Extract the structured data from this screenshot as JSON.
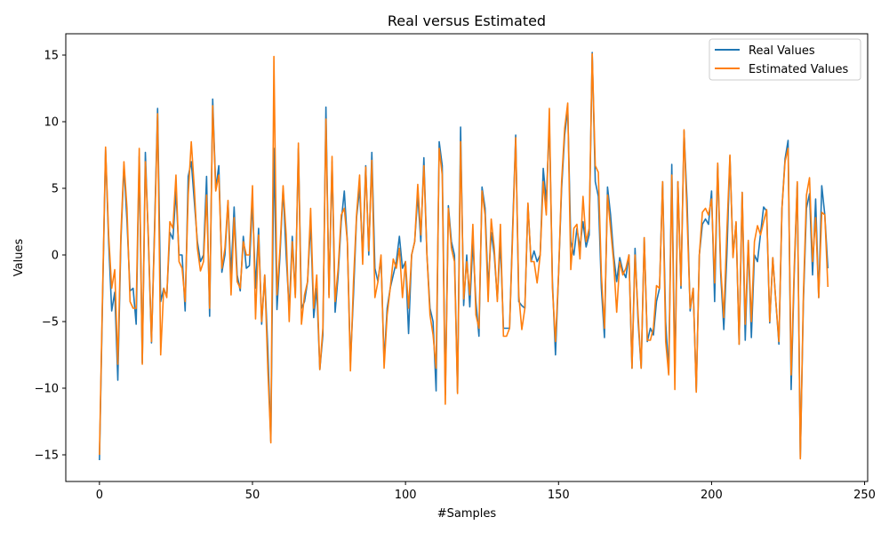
{
  "chart_data": {
    "type": "line",
    "title": "Real versus Estimated",
    "xlabel": "#Samples",
    "ylabel": "Values",
    "xlim": [
      -11,
      251
    ],
    "ylim": [
      -17,
      16.6
    ],
    "xticks": [
      0,
      50,
      100,
      150,
      200,
      250
    ],
    "yticks": [
      -15,
      -10,
      -5,
      0,
      5,
      10,
      15
    ],
    "grid": false,
    "legend_position": "top-right",
    "colors": {
      "real": "#1f77b4",
      "estimated": "#ff7f0e"
    },
    "series": [
      {
        "name": "Real Values",
        "values": [
          -15.4,
          -3.5,
          7.9,
          1.0,
          -4.2,
          -2.8,
          -9.4,
          1.0,
          6.7,
          2.5,
          -2.7,
          -2.5,
          -5.2,
          7.4,
          -8.1,
          7.7,
          1.0,
          -6.6,
          2.0,
          11.0,
          -3.5,
          -2.5,
          -3.1,
          1.7,
          1.2,
          4.8,
          0.0,
          0.0,
          -4.2,
          5.9,
          7.0,
          4.0,
          1.0,
          -0.5,
          0.0,
          5.9,
          -4.6,
          11.7,
          5.0,
          6.7,
          -1.3,
          0.0,
          4.0,
          -1.5,
          3.6,
          -1.5,
          -2.7,
          1.4,
          -1.0,
          -0.8,
          4.0,
          -2.5,
          2.0,
          -5.2,
          -1.5,
          -7.0,
          -14.0,
          8.0,
          -4.1,
          0.0,
          5.0,
          0.0,
          -4.2,
          1.4,
          -3.0,
          8.0,
          -4.0,
          -3.5,
          -2.0,
          2.5,
          -4.7,
          -2.5,
          -8.6,
          -6.0,
          11.1,
          -3.0,
          7.0,
          -4.3,
          -1.5,
          2.5,
          4.8,
          1.0,
          -8.1,
          -3.0,
          2.8,
          5.0,
          0.0,
          6.7,
          0.0,
          7.7,
          -1.0,
          -2.0,
          -0.2,
          -8.0,
          -4.0,
          -2.5,
          -1.5,
          -0.5,
          1.4,
          -1.0,
          -0.5,
          -5.9,
          0.0,
          1.0,
          4.5,
          1.0,
          7.3,
          0.0,
          -4.0,
          -5.0,
          -10.2,
          8.5,
          6.7,
          -10.5,
          3.7,
          1.0,
          0.0,
          -10.3,
          9.6,
          -3.8,
          0.0,
          -3.9,
          1.0,
          -3.5,
          -6.1,
          5.1,
          3.5,
          -2.5,
          1.7,
          0.0,
          -3.3,
          1.0,
          -5.5,
          -5.5,
          -5.5,
          2.0,
          9.0,
          -3.5,
          -3.8,
          -4.0,
          3.8,
          -0.5,
          0.3,
          -0.5,
          0.0,
          6.5,
          4.0,
          10.0,
          -2.0,
          -7.5,
          -1.5,
          5.0,
          9.0,
          11.0,
          1.0,
          0.0,
          2.0,
          0.6,
          2.5,
          0.6,
          1.5,
          15.2,
          5.5,
          4.4,
          -2.5,
          -6.2,
          5.1,
          3.0,
          0.0,
          -2.0,
          -0.2,
          -1.2,
          -1.7,
          0.0,
          -8.5,
          0.5,
          -5.0,
          -8.5,
          1.3,
          -6.5,
          -5.5,
          -6.0,
          -3.5,
          -2.5,
          5.5,
          -5.0,
          -8.9,
          6.8,
          -8.9,
          5.5,
          -2.5,
          9.3,
          4.0,
          -4.2,
          -2.5,
          -10.2,
          0.0,
          2.3,
          2.7,
          2.3,
          4.8,
          -3.5,
          6.8,
          -1.5,
          -5.6,
          0.0,
          7.4,
          0.0,
          2.4,
          -6.7,
          4.7,
          -6.4,
          1.0,
          -6.2,
          0.0,
          -0.5,
          1.6,
          3.6,
          3.3,
          -5.1,
          -0.2,
          -3.5,
          -6.7,
          3.5,
          7.2,
          8.6,
          -10.1,
          -1.5,
          5.4,
          -15.2,
          -3.5,
          3.5,
          4.6,
          -1.5,
          4.2,
          -3.2,
          5.2,
          3.0,
          -1.0
        ]
      },
      {
        "name": "Estimated Values",
        "values": [
          -15.0,
          -3.0,
          8.1,
          1.5,
          -2.5,
          -1.1,
          -8.2,
          1.5,
          7.0,
          3.5,
          -3.5,
          -4.0,
          -4.0,
          8.0,
          -8.2,
          7.0,
          1.3,
          -6.5,
          1.5,
          10.6,
          -7.5,
          -2.5,
          -3.2,
          2.5,
          2.0,
          6.0,
          -0.5,
          -1.0,
          -3.5,
          4.5,
          8.5,
          5.0,
          0.5,
          -1.2,
          -0.5,
          4.5,
          -4.0,
          11.2,
          4.8,
          6.0,
          -1.0,
          0.5,
          4.1,
          -3.0,
          2.8,
          -2.0,
          -2.5,
          1.0,
          0.0,
          0.0,
          5.2,
          -4.8,
          1.5,
          -5.0,
          -1.5,
          -8.5,
          -14.1,
          14.9,
          -3.0,
          0.5,
          5.2,
          1.5,
          -5.0,
          1.0,
          -3.2,
          8.4,
          -5.2,
          -3.0,
          -2.0,
          3.5,
          -4.0,
          -1.5,
          -8.6,
          -5.5,
          10.2,
          -3.2,
          7.4,
          -3.5,
          -1.0,
          3.0,
          3.5,
          1.0,
          -8.7,
          -2.0,
          3.0,
          6.0,
          -0.7,
          6.6,
          0.3,
          7.1,
          -3.2,
          -2.0,
          0.0,
          -8.5,
          -4.5,
          -2.5,
          -0.3,
          -1.0,
          0.5,
          -3.2,
          -0.5,
          -4.0,
          0.0,
          1.0,
          5.3,
          1.5,
          6.7,
          0.0,
          -4.5,
          -6.0,
          -8.5,
          8.0,
          6.0,
          -11.2,
          3.5,
          0.5,
          -0.5,
          -10.4,
          8.5,
          -3.3,
          -0.5,
          -3.0,
          2.3,
          -4.5,
          -5.5,
          4.8,
          3.0,
          -3.5,
          2.7,
          0.5,
          -3.5,
          2.3,
          -6.1,
          -6.1,
          -5.5,
          1.5,
          8.8,
          -3.0,
          -5.6,
          -4.0,
          3.9,
          -0.5,
          -0.5,
          -2.1,
          0.0,
          5.5,
          3.0,
          11.0,
          -2.5,
          -6.5,
          -1.5,
          5.5,
          9.5,
          11.4,
          -1.1,
          2.0,
          2.3,
          -0.3,
          4.4,
          1.0,
          2.0,
          15.1,
          6.7,
          6.2,
          -1.5,
          -5.5,
          4.5,
          2.0,
          -0.5,
          -4.3,
          -0.5,
          -1.5,
          -1.0,
          0.0,
          -8.5,
          0.0,
          -4.5,
          -8.5,
          1.3,
          -6.4,
          -6.4,
          -5.5,
          -2.3,
          -2.5,
          5.5,
          -6.5,
          -9.0,
          6.0,
          -10.1,
          5.5,
          -2.3,
          9.4,
          2.8,
          -4.0,
          -2.5,
          -10.3,
          0.0,
          3.2,
          3.5,
          3.0,
          4.2,
          -2.1,
          6.9,
          -1.0,
          -4.7,
          1.8,
          7.5,
          -0.2,
          2.5,
          -6.7,
          4.7,
          -5.2,
          1.1,
          -5.0,
          1.0,
          2.2,
          1.5,
          2.5,
          3.4,
          -5.0,
          -0.2,
          -3.5,
          -6.5,
          3.5,
          7.0,
          8.0,
          -9.0,
          -1.0,
          5.5,
          -15.3,
          -3.0,
          4.5,
          5.8,
          -0.5,
          2.8,
          -3.2,
          3.2,
          3.0,
          -2.4
        ]
      }
    ]
  }
}
